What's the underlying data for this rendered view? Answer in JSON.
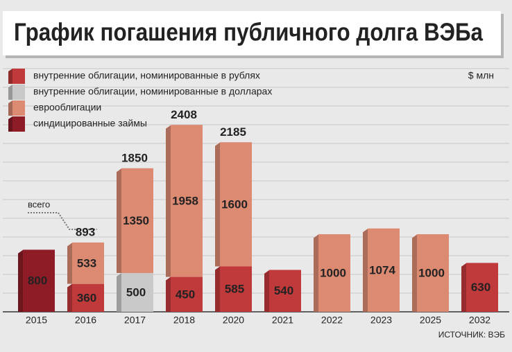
{
  "chart_data": {
    "type": "bar",
    "stacked": true,
    "title": "График погашения публичного долга ВЭБа",
    "unit": "$ млн",
    "source": "ИСТОЧНИК: ВЭБ",
    "total_annotation": "всего",
    "categories": [
      "2015",
      "2016",
      "2017",
      "2018",
      "2020",
      "2021",
      "2022",
      "2023",
      "2025",
      "2032"
    ],
    "series": [
      {
        "name": "внутренние облигации, номинированные в рублях",
        "color": "#c0393b",
        "label_color": "#ffffff",
        "values": [
          null,
          360,
          null,
          450,
          585,
          540,
          null,
          null,
          null,
          630
        ]
      },
      {
        "name": "внутренние облигации, номинированные в долларах",
        "color": "#c9c9c9",
        "label_color": "#222222",
        "values": [
          null,
          null,
          500,
          null,
          null,
          null,
          null,
          null,
          null,
          null
        ]
      },
      {
        "name": "еврооблигации",
        "color": "#dd8a73",
        "label_color": "#222222",
        "values": [
          null,
          533,
          1350,
          1958,
          1600,
          null,
          1000,
          1074,
          1000,
          null
        ]
      },
      {
        "name": "синдицированные займы",
        "color": "#8d1c27",
        "label_color": "#ffffff",
        "values": [
          800,
          null,
          null,
          null,
          null,
          null,
          null,
          null,
          null,
          null
        ]
      }
    ],
    "totals": [
      null,
      893,
      1850,
      2408,
      2185,
      null,
      null,
      null,
      null,
      null
    ],
    "ylim": [
      0,
      4000
    ],
    "grid": true,
    "legend": "top-left"
  }
}
